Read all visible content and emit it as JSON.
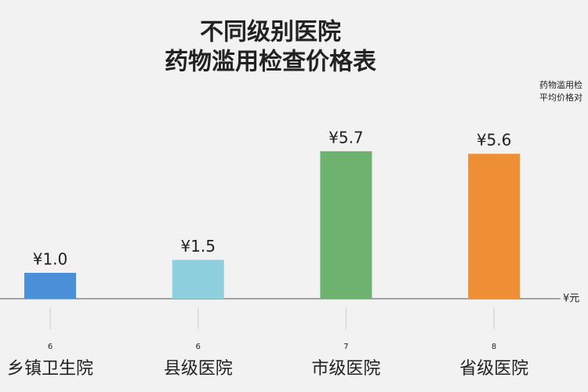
{
  "chart_data": {
    "type": "bar",
    "title": "不同级别医院",
    "subtitle": "药物滥用检查价格表",
    "annotations": [
      "药物滥用检",
      "平均价格对"
    ],
    "y_label": "¥元",
    "categories": [
      "乡镇卫生院",
      "县级医院",
      "市级医院",
      "省级医院"
    ],
    "category_notes": [
      "6",
      "6",
      "7",
      "8"
    ],
    "values": [
      1.0,
      1.5,
      5.7,
      5.6
    ],
    "value_labels": [
      "¥1.0",
      "¥1.5",
      "¥5.7",
      "¥5.6"
    ],
    "colors": [
      "#4a8fd8",
      "#8ecfdd",
      "#6db36f",
      "#ef8f35"
    ],
    "ylim": [
      0,
      7
    ]
  }
}
